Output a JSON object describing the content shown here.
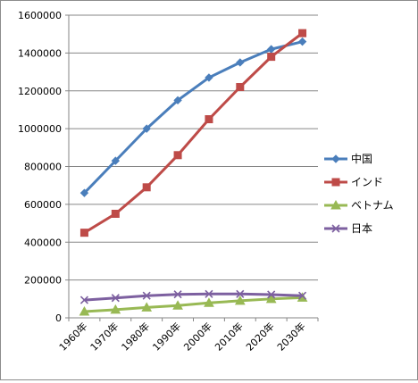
{
  "chart_data": {
    "type": "line",
    "title": "",
    "xlabel": "",
    "ylabel": "",
    "categories": [
      "1960年",
      "1970年",
      "1980年",
      "1990年",
      "2000年",
      "2010年",
      "2020年",
      "2030年"
    ],
    "ylim": [
      0,
      1600000
    ],
    "yticks": [
      0,
      200000,
      400000,
      600000,
      800000,
      1000000,
      1200000,
      1400000,
      1600000
    ],
    "grid": true,
    "legend_position": "right",
    "series": [
      {
        "name": "中国",
        "color": "#4a7ebb",
        "marker": "diamond",
        "values": [
          660000,
          830000,
          1000000,
          1150000,
          1270000,
          1350000,
          1420000,
          1460000
        ]
      },
      {
        "name": "インド",
        "color": "#be4b48",
        "marker": "square",
        "values": [
          450000,
          550000,
          690000,
          860000,
          1050000,
          1220000,
          1380000,
          1505000
        ]
      },
      {
        "name": "ベトナム",
        "color": "#98b954",
        "marker": "triangle",
        "values": [
          33000,
          43000,
          55000,
          65000,
          79000,
          90000,
          100000,
          107000
        ]
      },
      {
        "name": "日本",
        "color": "#7d60a0",
        "marker": "x",
        "values": [
          94000,
          105000,
          117000,
          124000,
          126000,
          126000,
          123000,
          117000
        ]
      }
    ]
  }
}
